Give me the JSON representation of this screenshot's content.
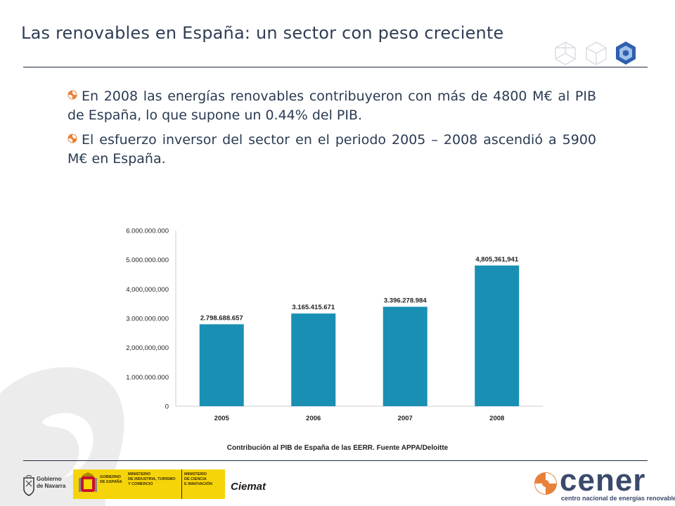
{
  "slide": {
    "title": "Las renovables en España: un sector con peso creciente",
    "bullets": [
      "En 2008 las energías renovables contribuyeron con más de 4800 M€ al PIB de España, lo que supone un 0.44% del PIB.",
      "El esfuerzo inversor del sector en el periodo 2005 – 2008 ascendió a 5900 M€ en España."
    ],
    "accent_color": "#e8813a",
    "title_color": "#2f3e55"
  },
  "chart_data": {
    "type": "bar",
    "categories": [
      "2005",
      "2006",
      "2007",
      "2008"
    ],
    "values": [
      2798688657,
      3165415671,
      3396278984,
      4805361941
    ],
    "value_labels": [
      "2.798.688.657",
      "3.165.415.671",
      "3.396.278.984",
      "4,805,361,941"
    ],
    "yticks": [
      0,
      1000000000,
      2000000000,
      3000000000,
      4000000000,
      5000000000,
      6000000000
    ],
    "ytick_labels": [
      "0",
      "1.000.000.000",
      "2,000,000,000",
      "3.000.000.000",
      "4,000,000,000",
      "5.000.000.000",
      "6.000.000.000"
    ],
    "ylim": [
      0,
      6000000000
    ],
    "bar_color": "#1a8fb4",
    "grid": false,
    "legend": "none",
    "caption": "Contribución al PIB de España de las EERR. Fuente APPA/Deloitte"
  },
  "footer": {
    "navarra": [
      "Gobierno",
      "de Navarra"
    ],
    "gobierno": [
      "GOBIERNO",
      "DE ESPAÑA"
    ],
    "ministerio_industria": [
      "MINISTERIO",
      "DE INDUSTRIA, TURISMO",
      "Y COMERCIO"
    ],
    "ministerio_ciencia": [
      "MINISTERIO",
      "DE CIENCIA",
      "E INNOVACIÓN"
    ],
    "ciemat": "Ciemat",
    "cener": "cener",
    "cener_subtitle": "centro nacional de energías renovables",
    "gob_color": "#f6d40a",
    "cener_color": "#3b4a6b"
  }
}
